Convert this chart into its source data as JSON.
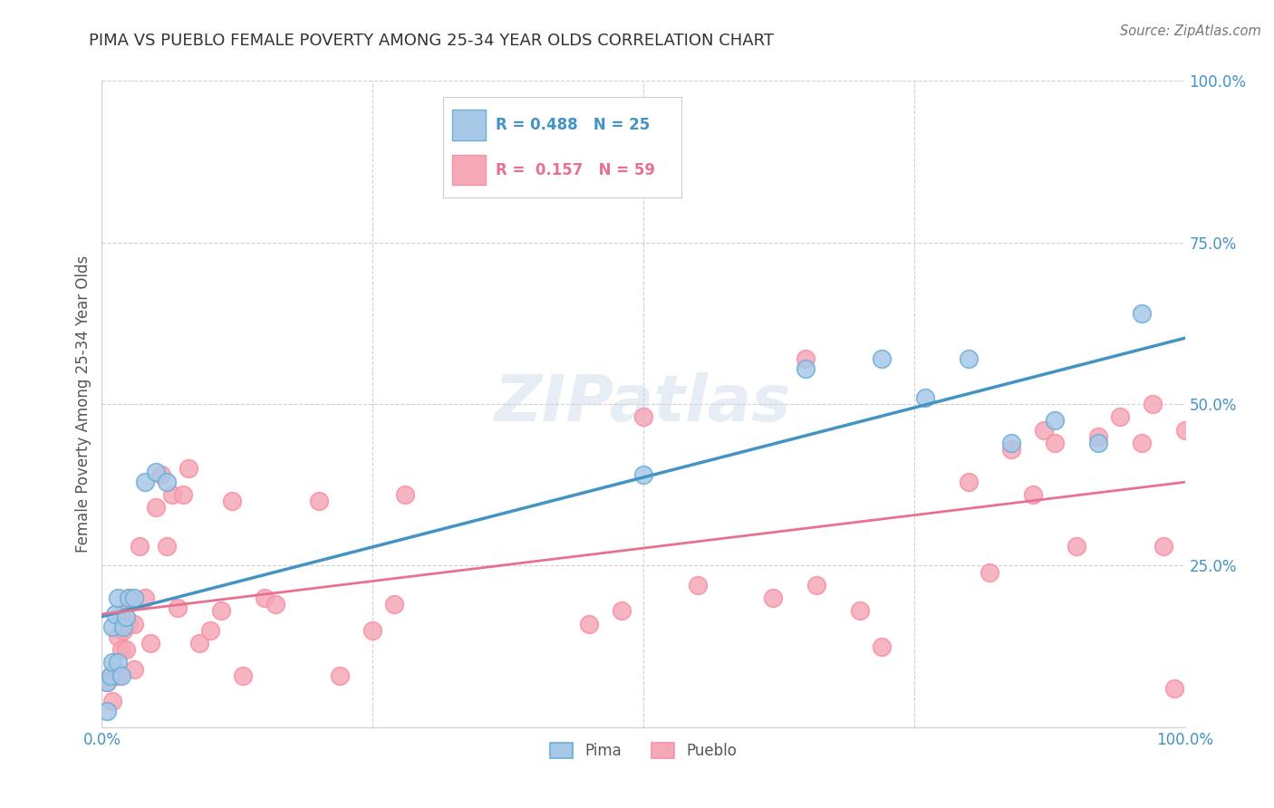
{
  "title": "PIMA VS PUEBLO FEMALE POVERTY AMONG 25-34 YEAR OLDS CORRELATION CHART",
  "source": "Source: ZipAtlas.com",
  "ylabel": "Female Poverty Among 25-34 Year Olds",
  "watermark": "ZIPatlas",
  "pima_color": "#a8c8e8",
  "pueblo_color": "#f4a8b8",
  "pima_edge_color": "#6baed6",
  "pueblo_edge_color": "#fc8fa0",
  "pima_line_color": "#4393c3",
  "pueblo_line_color": "#e87090",
  "pima_R": 0.488,
  "pima_N": 25,
  "pueblo_R": 0.157,
  "pueblo_N": 59,
  "pima_scatter_x": [
    0.005,
    0.005,
    0.008,
    0.01,
    0.01,
    0.012,
    0.015,
    0.015,
    0.018,
    0.02,
    0.022,
    0.025,
    0.03,
    0.04,
    0.05,
    0.06,
    0.5,
    0.65,
    0.72,
    0.76,
    0.8,
    0.84,
    0.88,
    0.92,
    0.96
  ],
  "pima_scatter_y": [
    0.025,
    0.07,
    0.08,
    0.1,
    0.155,
    0.175,
    0.1,
    0.2,
    0.08,
    0.155,
    0.17,
    0.2,
    0.2,
    0.38,
    0.395,
    0.38,
    0.39,
    0.555,
    0.57,
    0.51,
    0.57,
    0.44,
    0.475,
    0.44,
    0.64
  ],
  "pueblo_scatter_x": [
    0.005,
    0.008,
    0.01,
    0.012,
    0.015,
    0.015,
    0.018,
    0.018,
    0.02,
    0.022,
    0.025,
    0.025,
    0.03,
    0.03,
    0.035,
    0.04,
    0.045,
    0.05,
    0.055,
    0.06,
    0.065,
    0.07,
    0.075,
    0.08,
    0.09,
    0.1,
    0.11,
    0.12,
    0.13,
    0.15,
    0.16,
    0.2,
    0.22,
    0.25,
    0.27,
    0.28,
    0.45,
    0.48,
    0.5,
    0.55,
    0.62,
    0.65,
    0.66,
    0.7,
    0.72,
    0.8,
    0.82,
    0.84,
    0.86,
    0.87,
    0.88,
    0.9,
    0.92,
    0.94,
    0.96,
    0.97,
    0.98,
    0.99,
    1.0
  ],
  "pueblo_scatter_y": [
    0.07,
    0.08,
    0.04,
    0.09,
    0.08,
    0.14,
    0.12,
    0.175,
    0.15,
    0.12,
    0.16,
    0.2,
    0.09,
    0.16,
    0.28,
    0.2,
    0.13,
    0.34,
    0.39,
    0.28,
    0.36,
    0.185,
    0.36,
    0.4,
    0.13,
    0.15,
    0.18,
    0.35,
    0.08,
    0.2,
    0.19,
    0.35,
    0.08,
    0.15,
    0.19,
    0.36,
    0.16,
    0.18,
    0.48,
    0.22,
    0.2,
    0.57,
    0.22,
    0.18,
    0.125,
    0.38,
    0.24,
    0.43,
    0.36,
    0.46,
    0.44,
    0.28,
    0.45,
    0.48,
    0.44,
    0.5,
    0.28,
    0.06,
    0.46
  ],
  "background_color": "#ffffff",
  "grid_color": "#d0d0d0",
  "title_color": "#333333",
  "axis_label_color": "#555555",
  "tick_color": "#4393c3",
  "source_color": "#777777"
}
